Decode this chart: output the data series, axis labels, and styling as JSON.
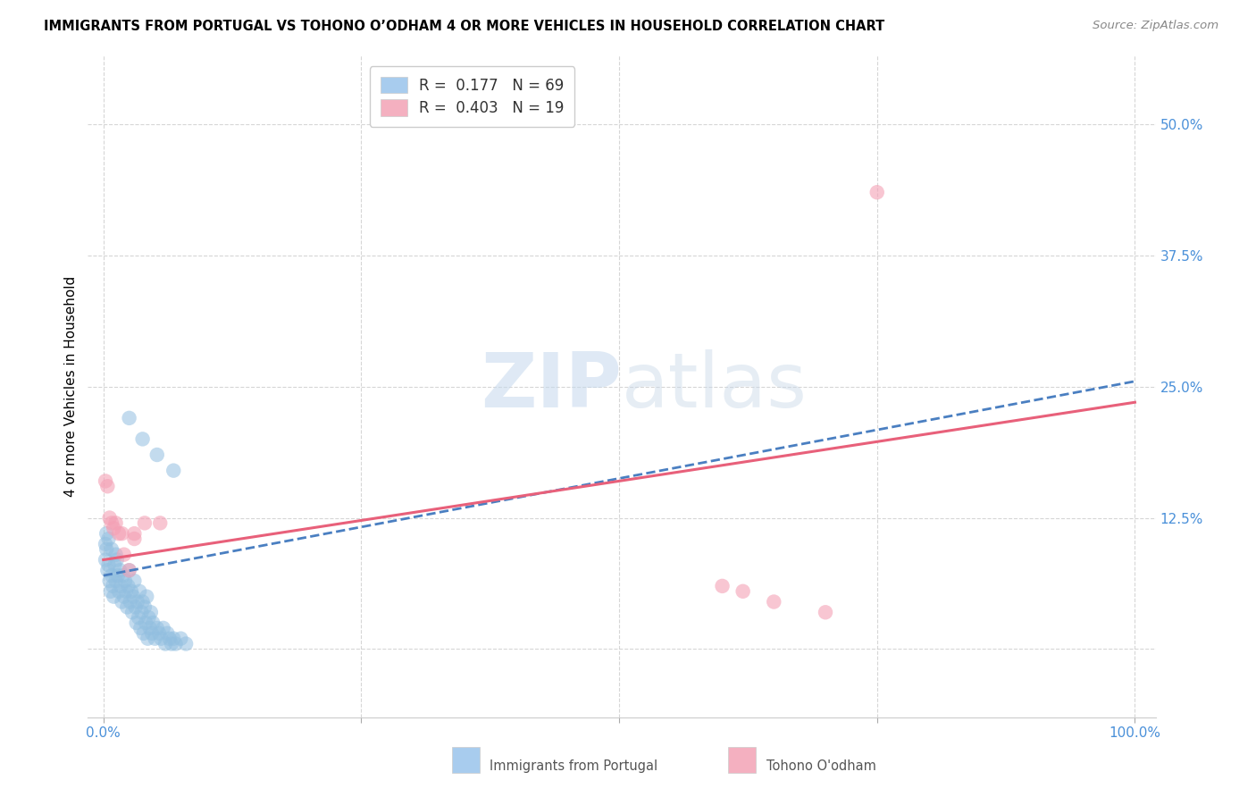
{
  "title": "IMMIGRANTS FROM PORTUGAL VS TOHONO O’ODHAM 4 OR MORE VEHICLES IN HOUSEHOLD CORRELATION CHART",
  "source": "Source: ZipAtlas.com",
  "ylabel": "4 or more Vehicles in Household",
  "blue_color": "#92bfe0",
  "pink_color": "#f4a0b5",
  "blue_line_color": "#4a7fc1",
  "pink_line_color": "#e8607a",
  "watermark_zip": "ZIP",
  "watermark_atlas": "atlas",
  "legend_blue_label": "R =  0.177   N = 69",
  "legend_pink_label": "R =  0.403   N = 19",
  "legend_blue_color": "#a8ccee",
  "legend_pink_color": "#f4b0c0",
  "blue_line_x0": 0.0,
  "blue_line_y0": 0.07,
  "blue_line_x1": 1.0,
  "blue_line_y1": 0.255,
  "pink_line_x0": 0.0,
  "pink_line_y0": 0.085,
  "pink_line_x1": 1.0,
  "pink_line_y1": 0.235,
  "xlim": [
    -0.015,
    1.02
  ],
  "ylim": [
    -0.065,
    0.565
  ],
  "xtick_positions": [
    0.0,
    0.25,
    0.5,
    0.75,
    1.0
  ],
  "xtick_labels": [
    "0.0%",
    "",
    "",
    "",
    "100.0%"
  ],
  "ytick_positions": [
    0.0,
    0.125,
    0.25,
    0.375,
    0.5
  ],
  "ytick_labels": [
    "",
    "12.5%",
    "25.0%",
    "37.5%",
    "50.0%"
  ],
  "blue_x": [
    0.002,
    0.003,
    0.004,
    0.005,
    0.006,
    0.007,
    0.008,
    0.009,
    0.01,
    0.011,
    0.012,
    0.013,
    0.014,
    0.015,
    0.016,
    0.017,
    0.018,
    0.019,
    0.02,
    0.021,
    0.022,
    0.023,
    0.024,
    0.025,
    0.026,
    0.027,
    0.028,
    0.029,
    0.03,
    0.031,
    0.032,
    0.033,
    0.034,
    0.035,
    0.036,
    0.037,
    0.038,
    0.039,
    0.04,
    0.041,
    0.042,
    0.043,
    0.044,
    0.045,
    0.046,
    0.047,
    0.048,
    0.05,
    0.052,
    0.054,
    0.056,
    0.058,
    0.06,
    0.062,
    0.064,
    0.066,
    0.068,
    0.07,
    0.075,
    0.08,
    0.002,
    0.003,
    0.005,
    0.008,
    0.012,
    0.025,
    0.038,
    0.052,
    0.068
  ],
  "blue_y": [
    0.085,
    0.095,
    0.075,
    0.08,
    0.065,
    0.055,
    0.07,
    0.06,
    0.05,
    0.08,
    0.065,
    0.085,
    0.07,
    0.055,
    0.075,
    0.06,
    0.045,
    0.07,
    0.05,
    0.065,
    0.055,
    0.04,
    0.06,
    0.075,
    0.045,
    0.055,
    0.035,
    0.05,
    0.065,
    0.04,
    0.025,
    0.045,
    0.03,
    0.055,
    0.02,
    0.035,
    0.045,
    0.015,
    0.04,
    0.025,
    0.05,
    0.01,
    0.03,
    0.02,
    0.035,
    0.015,
    0.025,
    0.01,
    0.02,
    0.015,
    0.01,
    0.02,
    0.005,
    0.015,
    0.01,
    0.005,
    0.01,
    0.005,
    0.01,
    0.005,
    0.1,
    0.11,
    0.105,
    0.095,
    0.09,
    0.22,
    0.2,
    0.185,
    0.17
  ],
  "pink_x": [
    0.002,
    0.004,
    0.006,
    0.008,
    0.01,
    0.012,
    0.015,
    0.018,
    0.02,
    0.025,
    0.03,
    0.03,
    0.04,
    0.055,
    0.6,
    0.62,
    0.65,
    0.7,
    0.75
  ],
  "pink_y": [
    0.16,
    0.155,
    0.125,
    0.12,
    0.115,
    0.12,
    0.11,
    0.11,
    0.09,
    0.075,
    0.105,
    0.11,
    0.12,
    0.12,
    0.06,
    0.055,
    0.045,
    0.035,
    0.435
  ]
}
